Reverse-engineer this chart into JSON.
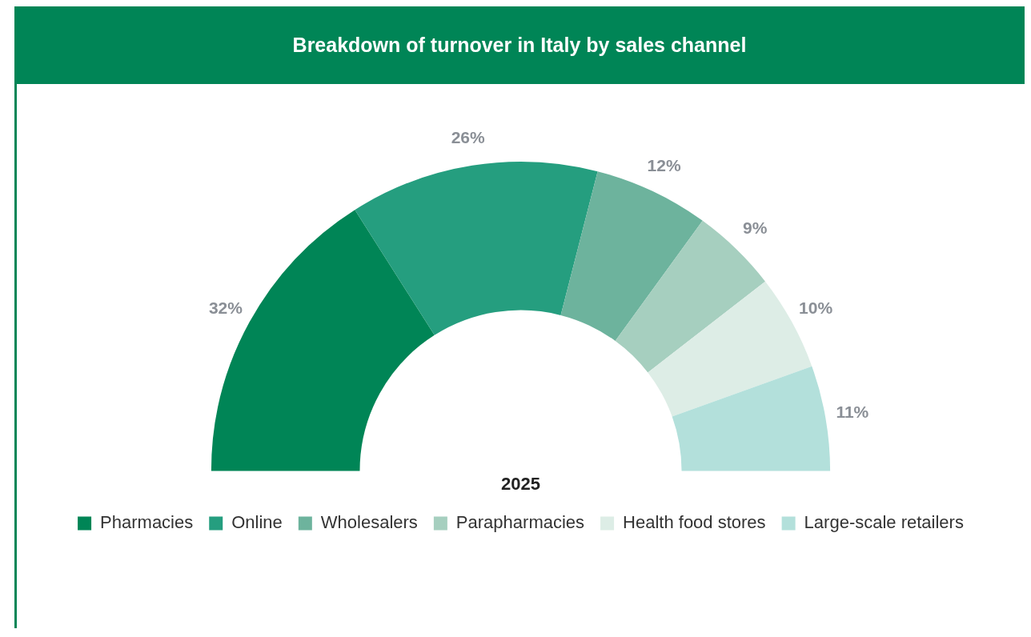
{
  "chart_data": {
    "type": "donut",
    "title": "Breakdown of turnover in Italy by sales channel",
    "legend_title": "2025",
    "categories": [
      "Pharmacies",
      "Online",
      "Wholesalers",
      "Parapharmacies",
      "Health food stores",
      "Large-scale retailers"
    ],
    "values": [
      32,
      26,
      12,
      9,
      10,
      11
    ],
    "colors": [
      "#008556",
      "#259e7f",
      "#6db39d",
      "#a6cfbf",
      "#ddede6",
      "#b3e0db"
    ],
    "value_labels": [
      "32%",
      "26%",
      "12%",
      "9%",
      "10%",
      "11%"
    ],
    "legend": "bottom"
  }
}
